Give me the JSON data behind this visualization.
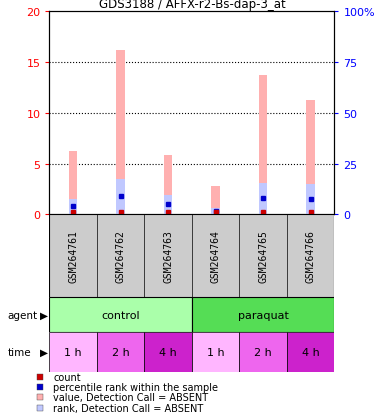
{
  "title": "GDS3188 / AFFX-r2-Bs-dap-3_at",
  "samples": [
    "GSM264761",
    "GSM264762",
    "GSM264763",
    "GSM264764",
    "GSM264765",
    "GSM264766"
  ],
  "value_absent": [
    6.2,
    16.2,
    5.8,
    2.8,
    13.7,
    11.3
  ],
  "rank_absent": [
    7.5,
    17.5,
    9.5,
    3.0,
    15.5,
    15.0
  ],
  "count_val": [
    0.12,
    0.12,
    0.12,
    0.12,
    0.12,
    0.12
  ],
  "rank_present": [
    0.12,
    0.12,
    0.12,
    0.12,
    0.12,
    0.12
  ],
  "ylim_left": [
    0,
    20
  ],
  "ylim_right": [
    0,
    100
  ],
  "yticks_left": [
    0,
    5,
    10,
    15,
    20
  ],
  "yticks_right": [
    0,
    25,
    50,
    75,
    100
  ],
  "ytick_labels_left": [
    "0",
    "5",
    "10",
    "15",
    "20"
  ],
  "ytick_labels_right": [
    "0",
    "25",
    "50",
    "75",
    "100%"
  ],
  "agent_labels": [
    "control",
    "paraquat"
  ],
  "agent_colors_light": [
    "#AAFFAA",
    "#55DD55"
  ],
  "time_labels": [
    "1 h",
    "2 h",
    "4 h",
    "1 h",
    "2 h",
    "4 h"
  ],
  "time_colors": [
    "#FFB6FF",
    "#EE66EE",
    "#CC22CC",
    "#FFB6FF",
    "#EE66EE",
    "#CC22CC"
  ],
  "color_value_absent": "#FFB0B0",
  "color_rank_absent": "#C0C8FF",
  "color_count": "#CC0000",
  "color_rank_present": "#0000CC",
  "bar_width": 0.18,
  "sample_bg_color": "#CCCCCC",
  "legend_items": [
    [
      "#CC0000",
      "count"
    ],
    [
      "#0000CC",
      "percentile rank within the sample"
    ],
    [
      "#FFB0B0",
      "value, Detection Call = ABSENT"
    ],
    [
      "#C0C8FF",
      "rank, Detection Call = ABSENT"
    ]
  ]
}
